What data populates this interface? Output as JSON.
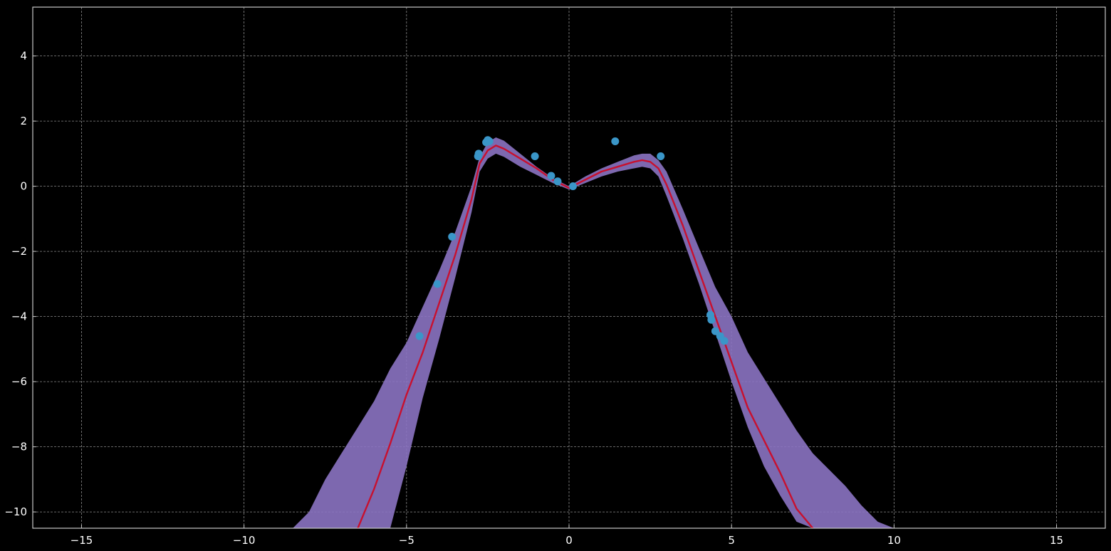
{
  "chart_data": {
    "type": "scatter",
    "title": "",
    "xlabel": "",
    "ylabel": "",
    "xlim": [
      -16.5,
      16.5
    ],
    "ylim": [
      -10.5,
      5.5
    ],
    "grid": true,
    "x_ticks": [
      -15,
      -10,
      -5,
      0,
      5,
      10,
      15
    ],
    "y_ticks": [
      4,
      2,
      0,
      -2,
      -4,
      -6,
      -8,
      -10
    ],
    "x_tick_labels": [
      "−15",
      "−10",
      "−5",
      "0",
      "5",
      "10",
      "15"
    ],
    "y_tick_labels": [
      "4",
      "2",
      "0",
      "−2",
      "−4",
      "−6",
      "−8",
      "−10"
    ],
    "colors": {
      "background": "#000000",
      "axes": "#c8c8c8",
      "grid": "#8a8a8a",
      "mean_line": "#c8102e",
      "band": "#8b73c2",
      "points": "#3a96c8"
    },
    "series": [
      {
        "kind": "line",
        "x": [
          -6.5,
          -6.0,
          -5.5,
          -5.0,
          -4.5,
          -4.0,
          -3.5,
          -3.0,
          -2.75,
          -2.5,
          -2.25,
          -2.0,
          -1.5,
          -1.0,
          -0.5,
          0.0,
          0.5,
          1.0,
          1.5,
          2.0,
          2.25,
          2.5,
          2.75,
          3.0,
          3.5,
          4.0,
          4.5,
          5.0,
          5.5,
          6.0,
          6.5,
          7.0,
          7.5
        ],
        "y": [
          -10.5,
          -9.3,
          -7.9,
          -6.4,
          -5.1,
          -3.6,
          -2.1,
          -0.4,
          0.7,
          1.1,
          1.25,
          1.15,
          0.85,
          0.55,
          0.2,
          -0.05,
          0.2,
          0.45,
          0.6,
          0.75,
          0.8,
          0.75,
          0.55,
          0.05,
          -1.2,
          -2.6,
          -4.0,
          -5.4,
          -6.8,
          -7.8,
          -8.8,
          -9.9,
          -10.5
        ]
      },
      {
        "kind": "band",
        "x": [
          -8.5,
          -8.0,
          -7.5,
          -7.0,
          -6.5,
          -6.0,
          -5.5,
          -5.0,
          -4.5,
          -4.0,
          -3.5,
          -3.0,
          -2.75,
          -2.5,
          -2.25,
          -2.0,
          -1.5,
          -1.0,
          -0.5,
          0.0,
          0.5,
          1.0,
          1.5,
          2.0,
          2.25,
          2.5,
          2.75,
          3.0,
          3.5,
          4.0,
          4.5,
          5.0,
          5.5,
          6.0,
          6.5,
          7.0,
          7.5,
          8.0,
          8.5,
          9.0,
          9.5,
          10.0
        ],
        "upper": [
          -10.5,
          -10.0,
          -9.0,
          -8.2,
          -7.4,
          -6.6,
          -5.6,
          -4.8,
          -3.7,
          -2.6,
          -1.4,
          0.0,
          0.9,
          1.35,
          1.5,
          1.4,
          1.0,
          0.6,
          0.25,
          0.0,
          0.3,
          0.55,
          0.75,
          0.95,
          1.0,
          1.0,
          0.8,
          0.45,
          -0.7,
          -1.9,
          -3.1,
          -4.0,
          -5.1,
          -5.9,
          -6.7,
          -7.5,
          -8.2,
          -8.7,
          -9.2,
          -9.8,
          -10.3,
          -10.5
        ],
        "lower": [
          -10.5,
          -10.5,
          -10.5,
          -10.5,
          -10.5,
          -10.5,
          -10.5,
          -8.6,
          -6.5,
          -4.7,
          -2.8,
          -0.8,
          0.45,
          0.85,
          1.0,
          0.9,
          0.6,
          0.35,
          0.1,
          -0.1,
          0.1,
          0.3,
          0.45,
          0.55,
          0.6,
          0.55,
          0.3,
          -0.3,
          -1.6,
          -3.0,
          -4.5,
          -6.0,
          -7.4,
          -8.6,
          -9.5,
          -10.3,
          -10.5,
          -10.5,
          -10.5,
          -10.5,
          -10.5,
          -10.5
        ]
      },
      {
        "kind": "points",
        "x": [
          -2.8,
          -2.78,
          -2.55,
          -2.5,
          -2.45,
          -1.05,
          -0.55,
          -0.35,
          0.12,
          1.42,
          2.82,
          -3.6,
          -4.05,
          -4.6,
          4.35,
          4.38,
          4.5,
          4.65,
          4.78
        ],
        "y": [
          0.92,
          1.0,
          1.35,
          1.42,
          1.38,
          0.92,
          0.32,
          0.15,
          0.0,
          1.38,
          0.92,
          -1.55,
          -3.0,
          -4.6,
          -3.95,
          -4.1,
          -4.45,
          -4.6,
          -4.75
        ]
      }
    ]
  }
}
